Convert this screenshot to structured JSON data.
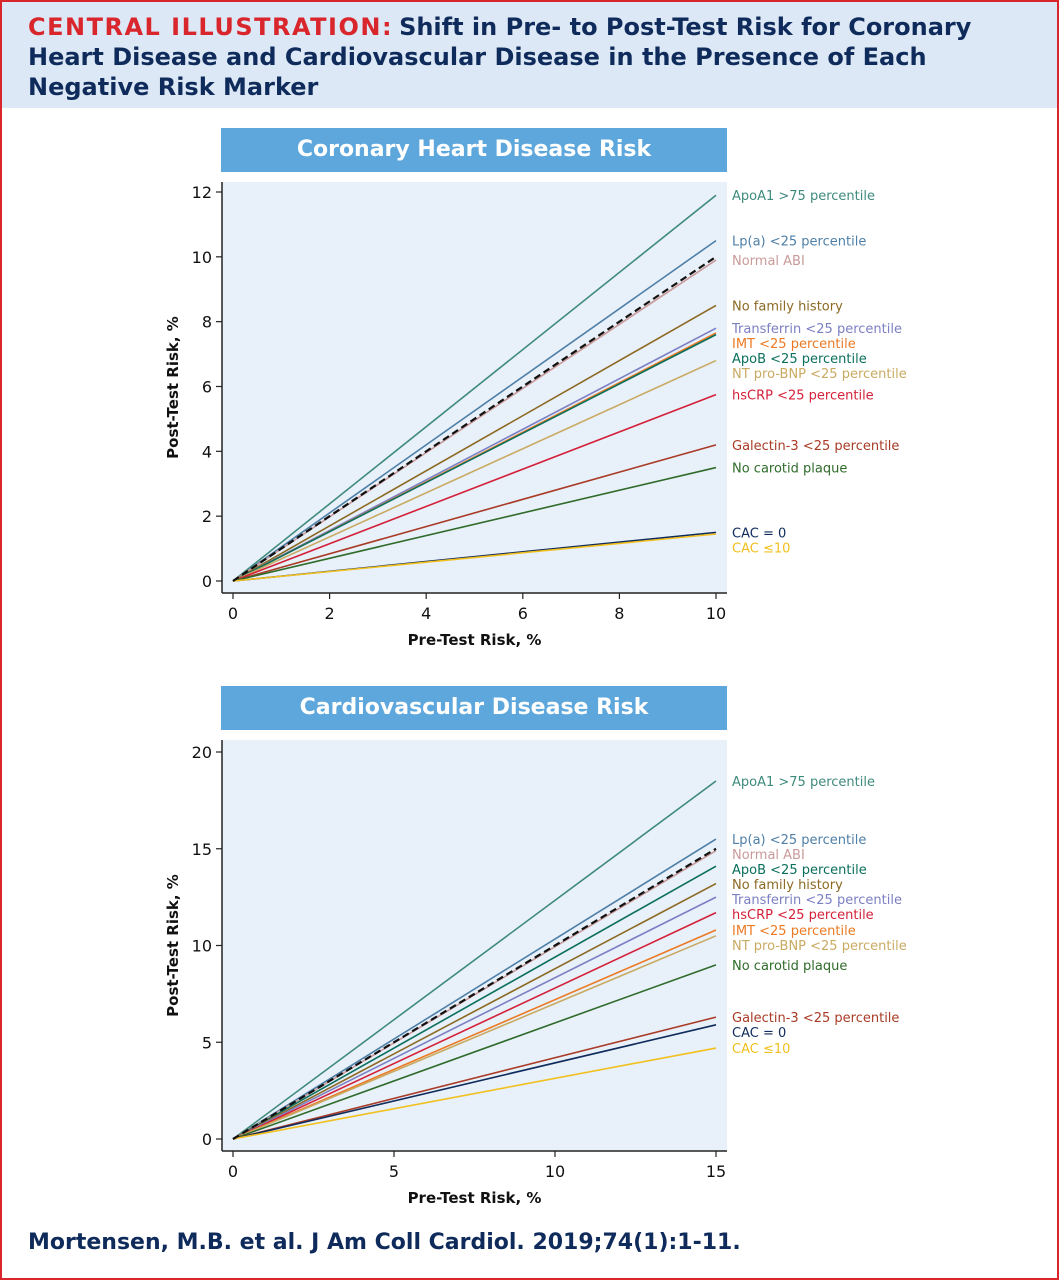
{
  "header": {
    "lead": "CENTRAL ILLUSTRATION:",
    "title": "Shift in Pre- to Post-Test Risk for Coronary Heart Disease and Cardiovascular Disease in the Presence of Each Negative Risk Marker"
  },
  "citation": "Mortensen, M.B. et al. J Am Coll Cardiol. 2019;74(1):1-11.",
  "colors": {
    "accent_red": "#d9262c",
    "navy": "#0f2b5b",
    "title_bar": "#5ea7dc",
    "plot_bg": "#e8f0f9"
  },
  "chart_data": [
    {
      "type": "line",
      "title": "Coronary Heart Disease Risk",
      "xlabel": "Pre-Test Risk, %",
      "ylabel": "Post-Test Risk, %",
      "xlim": [
        0,
        10
      ],
      "ylim": [
        0,
        12
      ],
      "xticks": [
        0,
        2,
        4,
        6,
        8,
        10
      ],
      "yticks": [
        0,
        2,
        4,
        6,
        8,
        10,
        12
      ],
      "reference": {
        "x": [
          0,
          10
        ],
        "y": [
          0,
          10
        ],
        "style": "dashed",
        "color": "#111111"
      },
      "series": [
        {
          "name": "ApoA1 >75 percentile",
          "x": [
            0,
            10
          ],
          "y": [
            0,
            11.9
          ],
          "color": "#3e8a7d"
        },
        {
          "name": "Lp(a) <25 percentile",
          "x": [
            0,
            10
          ],
          "y": [
            0,
            10.5
          ],
          "color": "#4e7fa7"
        },
        {
          "name": "Normal ABI",
          "x": [
            0,
            10
          ],
          "y": [
            0,
            9.9
          ],
          "color": "#c99a9a"
        },
        {
          "name": "No family history",
          "x": [
            0,
            10
          ],
          "y": [
            0,
            8.5
          ],
          "color": "#8c6a24"
        },
        {
          "name": "Transferrin <25 percentile",
          "x": [
            0,
            10
          ],
          "y": [
            0,
            7.8
          ],
          "color": "#7b7fc4"
        },
        {
          "name": "IMT <25 percentile",
          "x": [
            0,
            10
          ],
          "y": [
            0,
            7.65
          ],
          "color": "#ec7a24"
        },
        {
          "name": "ApoB <25 percentile",
          "x": [
            0,
            10
          ],
          "y": [
            0,
            7.6
          ],
          "color": "#0b6f5c"
        },
        {
          "name": "NT pro-BNP <25 percentile",
          "x": [
            0,
            10
          ],
          "y": [
            0,
            6.8
          ],
          "color": "#c9aa62"
        },
        {
          "name": "hsCRP <25 percentile",
          "x": [
            0,
            10
          ],
          "y": [
            0,
            5.75
          ],
          "color": "#d4213a"
        },
        {
          "name": "Galectin-3 <25 percentile",
          "x": [
            0,
            10
          ],
          "y": [
            0,
            4.2
          ],
          "color": "#a93b26"
        },
        {
          "name": "No carotid plaque",
          "x": [
            0,
            10
          ],
          "y": [
            0,
            3.5
          ],
          "color": "#2f6b2a"
        },
        {
          "name": "CAC = 0",
          "x": [
            0,
            10
          ],
          "y": [
            0,
            1.5
          ],
          "color": "#0f2b5b"
        },
        {
          "name": "CAC ≤10",
          "x": [
            0,
            10
          ],
          "y": [
            0,
            1.45
          ],
          "color": "#f2c01e"
        }
      ]
    },
    {
      "type": "line",
      "title": "Cardiovascular Disease Risk",
      "xlabel": "Pre-Test Risk, %",
      "ylabel": "Post-Test Risk, %",
      "xlim": [
        0,
        15
      ],
      "ylim": [
        0,
        20
      ],
      "xticks": [
        0,
        5,
        10,
        15
      ],
      "yticks": [
        0,
        5,
        10,
        15,
        20
      ],
      "reference": {
        "x": [
          0,
          15
        ],
        "y": [
          0,
          15
        ],
        "style": "dashed",
        "color": "#111111"
      },
      "series": [
        {
          "name": "ApoA1 >75 percentile",
          "x": [
            0,
            15
          ],
          "y": [
            0,
            18.5
          ],
          "color": "#3e8a7d"
        },
        {
          "name": "Lp(a) <25 percentile",
          "x": [
            0,
            15
          ],
          "y": [
            0,
            15.5
          ],
          "color": "#4e7fa7"
        },
        {
          "name": "Normal ABI",
          "x": [
            0,
            15
          ],
          "y": [
            0,
            14.9
          ],
          "color": "#c99a9a"
        },
        {
          "name": "ApoB <25 percentile",
          "x": [
            0,
            15
          ],
          "y": [
            0,
            14.1
          ],
          "color": "#0b6f5c"
        },
        {
          "name": "No family history",
          "x": [
            0,
            15
          ],
          "y": [
            0,
            13.2
          ],
          "color": "#8c6a24"
        },
        {
          "name": "Transferrin <25 percentile",
          "x": [
            0,
            15
          ],
          "y": [
            0,
            12.5
          ],
          "color": "#7b7fc4"
        },
        {
          "name": "hsCRP <25 percentile",
          "x": [
            0,
            15
          ],
          "y": [
            0,
            11.7
          ],
          "color": "#d4213a"
        },
        {
          "name": "IMT <25 percentile",
          "x": [
            0,
            15
          ],
          "y": [
            0,
            10.8
          ],
          "color": "#ec7a24"
        },
        {
          "name": "NT pro-BNP <25 percentile",
          "x": [
            0,
            15
          ],
          "y": [
            0,
            10.5
          ],
          "color": "#c9aa62"
        },
        {
          "name": "No carotid plaque",
          "x": [
            0,
            15
          ],
          "y": [
            0,
            9.0
          ],
          "color": "#2f6b2a"
        },
        {
          "name": "Galectin-3 <25 percentile",
          "x": [
            0,
            15
          ],
          "y": [
            0,
            6.3
          ],
          "color": "#a93b26"
        },
        {
          "name": "CAC = 0",
          "x": [
            0,
            15
          ],
          "y": [
            0,
            5.9
          ],
          "color": "#0f2b5b"
        },
        {
          "name": "CAC ≤10",
          "x": [
            0,
            15
          ],
          "y": [
            0,
            4.7
          ],
          "color": "#f2c01e"
        }
      ]
    }
  ]
}
